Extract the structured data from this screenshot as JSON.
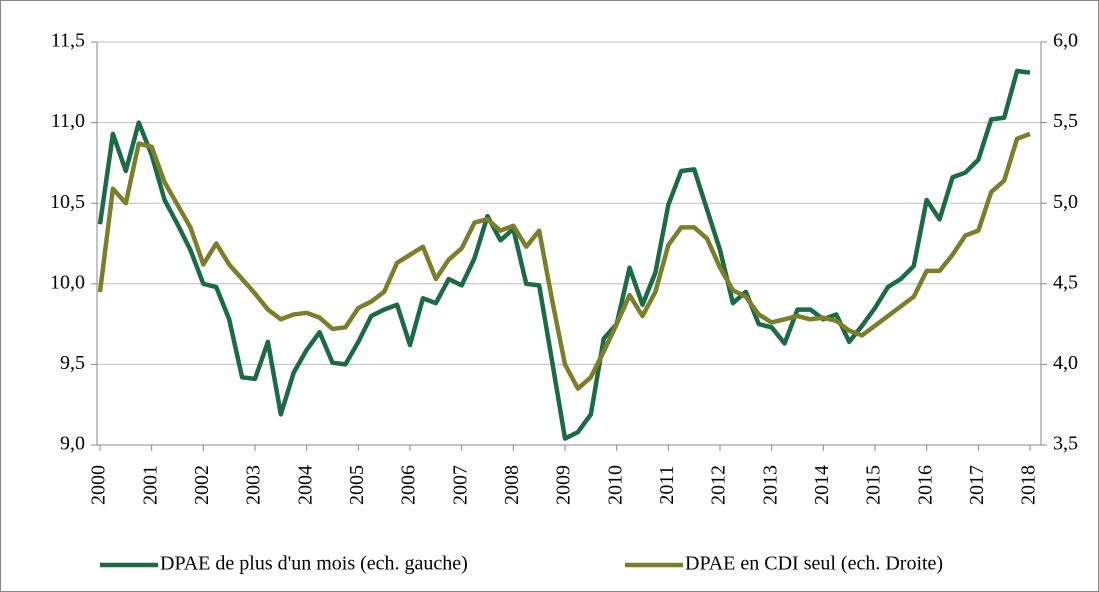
{
  "chart_data": {
    "type": "line",
    "x": [
      2000,
      2000.25,
      2000.5,
      2000.75,
      2001,
      2001.25,
      2001.5,
      2001.75,
      2002,
      2002.25,
      2002.5,
      2002.75,
      2003,
      2003.25,
      2003.5,
      2003.75,
      2004,
      2004.25,
      2004.5,
      2004.75,
      2005,
      2005.25,
      2005.5,
      2005.75,
      2006,
      2006.25,
      2006.5,
      2006.75,
      2007,
      2007.25,
      2007.5,
      2007.75,
      2008,
      2008.25,
      2008.5,
      2008.75,
      2009,
      2009.25,
      2009.5,
      2009.75,
      2010,
      2010.25,
      2010.5,
      2010.75,
      2011,
      2011.25,
      2011.5,
      2011.75,
      2012,
      2012.25,
      2012.5,
      2012.75,
      2013,
      2013.25,
      2013.5,
      2013.75,
      2014,
      2014.25,
      2014.5,
      2014.75,
      2015,
      2015.25,
      2015.5,
      2015.75,
      2016,
      2016.25,
      2016.5,
      2016.75,
      2017,
      2017.25,
      2017.5,
      2017.75,
      2018
    ],
    "series": [
      {
        "name": "DPAE de plus d'un mois (ech. gauche)",
        "color": "#1b6b45",
        "values": [
          10.37,
          10.93,
          10.7,
          11.0,
          10.8,
          10.52,
          10.37,
          10.21,
          10.0,
          9.98,
          9.78,
          9.42,
          9.41,
          9.64,
          9.19,
          9.45,
          9.59,
          9.7,
          9.51,
          9.5,
          9.64,
          9.8,
          9.84,
          9.87,
          9.62,
          9.91,
          9.88,
          10.03,
          9.99,
          10.16,
          10.42,
          10.27,
          10.34,
          10.0,
          9.99,
          9.52,
          9.04,
          9.08,
          9.19,
          9.66,
          9.75,
          10.1,
          9.87,
          10.07,
          10.49,
          10.7,
          10.71,
          10.46,
          10.21,
          9.88,
          9.95,
          9.75,
          9.73,
          9.63,
          9.84,
          9.84,
          9.78,
          9.81,
          9.64,
          9.74,
          9.85,
          9.98,
          10.03,
          10.11,
          10.52,
          10.4,
          10.66,
          10.69,
          10.77,
          11.02,
          11.03,
          11.32,
          11.31
        ]
      },
      {
        "name": "DPAE en CDI seul (ech. Droite)",
        "color": "#7b7f2a",
        "axis": "y2",
        "values": [
          4.45,
          5.09,
          5.0,
          5.37,
          5.35,
          5.13,
          4.99,
          4.85,
          4.62,
          4.75,
          4.62,
          4.53,
          4.44,
          4.34,
          4.28,
          4.31,
          4.32,
          4.29,
          4.22,
          4.23,
          4.35,
          4.39,
          4.45,
          4.63,
          4.68,
          4.73,
          4.53,
          4.65,
          4.72,
          4.88,
          4.9,
          4.83,
          4.86,
          4.73,
          4.83,
          4.4,
          4.0,
          3.85,
          3.92,
          4.08,
          4.25,
          4.43,
          4.3,
          4.45,
          4.74,
          4.85,
          4.85,
          4.78,
          4.6,
          4.46,
          4.42,
          4.31,
          4.26,
          4.28,
          4.3,
          4.28,
          4.29,
          4.27,
          4.21,
          4.18,
          4.24,
          4.3,
          4.36,
          4.42,
          4.58,
          4.58,
          4.68,
          4.8,
          4.83,
          5.07,
          5.14,
          5.4,
          5.43
        ]
      }
    ],
    "xlim": [
      2000,
      2018
    ],
    "xticks": [
      2000,
      2001,
      2002,
      2003,
      2004,
      2005,
      2006,
      2007,
      2008,
      2009,
      2010,
      2011,
      2012,
      2013,
      2014,
      2015,
      2016,
      2017,
      2018
    ],
    "ylim": [
      9.0,
      11.5
    ],
    "yticks": [
      {
        "value": 9.0,
        "label": "9,0"
      },
      {
        "value": 9.5,
        "label": "9,5"
      },
      {
        "value": 10.0,
        "label": "10,0"
      },
      {
        "value": 10.5,
        "label": "10,5"
      },
      {
        "value": 11.0,
        "label": "11,0"
      },
      {
        "value": 11.5,
        "label": "11,5"
      }
    ],
    "y2lim": [
      3.5,
      6.0
    ],
    "y2ticks": [
      {
        "value": 3.5,
        "label": "3,5"
      },
      {
        "value": 4.0,
        "label": "4,0"
      },
      {
        "value": 4.5,
        "label": "4,5"
      },
      {
        "value": 5.0,
        "label": "5,0"
      },
      {
        "value": 5.5,
        "label": "5,5"
      },
      {
        "value": 6.0,
        "label": "6,0"
      }
    ],
    "grid": true
  }
}
